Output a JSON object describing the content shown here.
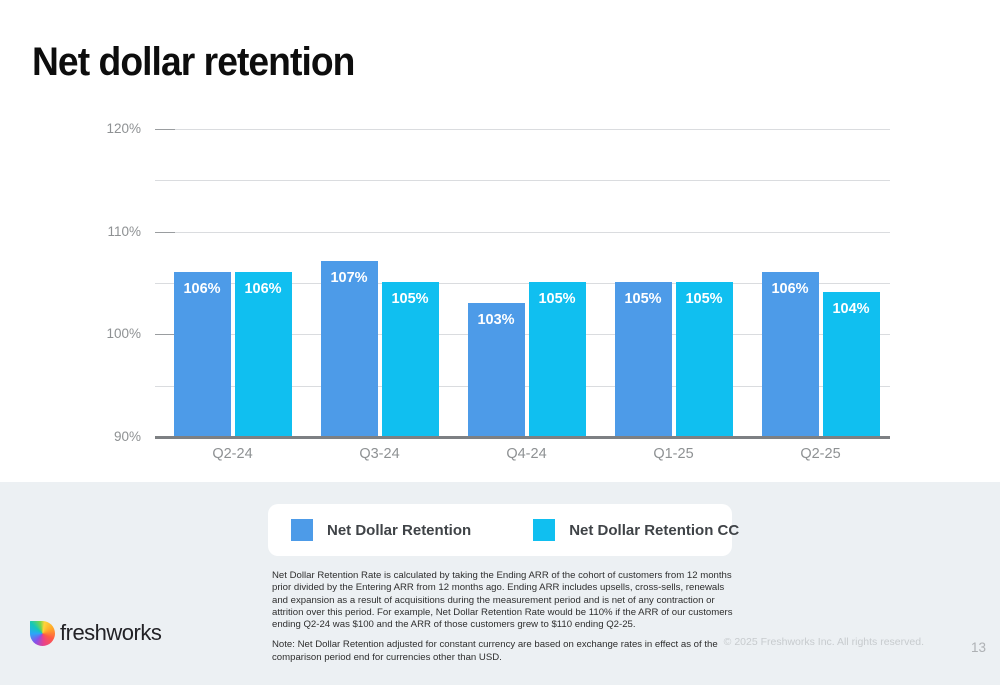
{
  "title": "Net dollar retention",
  "chart_data": {
    "type": "bar",
    "title": "Net dollar retention",
    "categories": [
      "Q2-24",
      "Q3-24",
      "Q4-24",
      "Q1-25",
      "Q2-25"
    ],
    "series": [
      {
        "name": "Net Dollar Retention",
        "color": "#4d9be8",
        "values": [
          106,
          107,
          103,
          105,
          106
        ]
      },
      {
        "name": "Net Dollar Retention CC",
        "color": "#10bff0",
        "values": [
          106,
          105,
          105,
          105,
          104
        ]
      }
    ],
    "value_suffix": "%",
    "ylim": [
      90,
      120
    ],
    "ytick_major": 10,
    "ytick_minor": 5,
    "grid": true,
    "legend_position": "bottom",
    "value_labels": "inside-top"
  },
  "footnote": {
    "paragraph1": "Net Dollar Retention Rate is calculated by taking the Ending ARR of the cohort of customers from 12 months prior divided by the Entering ARR from 12 months ago. Ending ARR includes upsells, cross-sells, renewals and expansion as a result of acquisitions during the measurement period and is net of any contraction or attrition over this period. For example, Net Dollar Retention Rate would be 110% if the ARR of our customers ending Q2-24 was $100 and the ARR of those customers grew to $110 ending Q2-25.",
    "paragraph2": "Note: Net Dollar Retention adjusted for constant currency are based on exchange rates in effect as of the comparison period end for currencies other than USD."
  },
  "footer": {
    "logo_text": "freshworks",
    "copyright": "© 2025 Freshworks Inc. All rights reserved.",
    "page_number": "13"
  },
  "colors": {
    "series1": "#4d9be8",
    "series2": "#10bff0",
    "band_background": "#ecf0f3",
    "gridline": "#dadcdf",
    "axis_baseline": "#7d8083",
    "axis_label": "#8e9193"
  }
}
